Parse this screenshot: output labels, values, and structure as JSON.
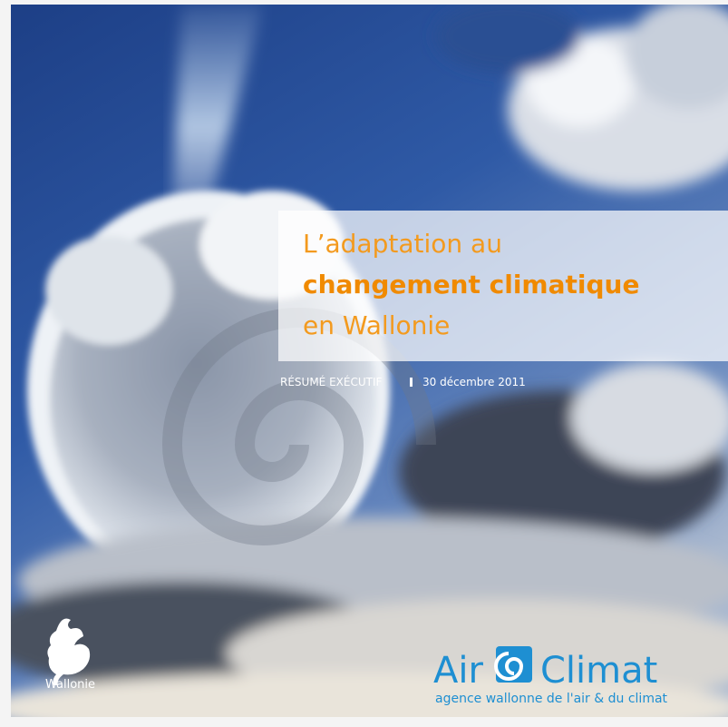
{
  "cover": {
    "title": {
      "line1": "L’adaptation au",
      "line2": "changement climatique",
      "line3": "en Wallonie"
    },
    "subtitle": {
      "label": "RÉSUMÉ EXÉCUTIF",
      "date": "30 décembre 2011"
    },
    "publisher": {
      "name": "Wallonie"
    },
    "brand": {
      "word1": "Air",
      "word2": "Climat",
      "tagline": "agence wallonne de l'air & du climat"
    }
  }
}
